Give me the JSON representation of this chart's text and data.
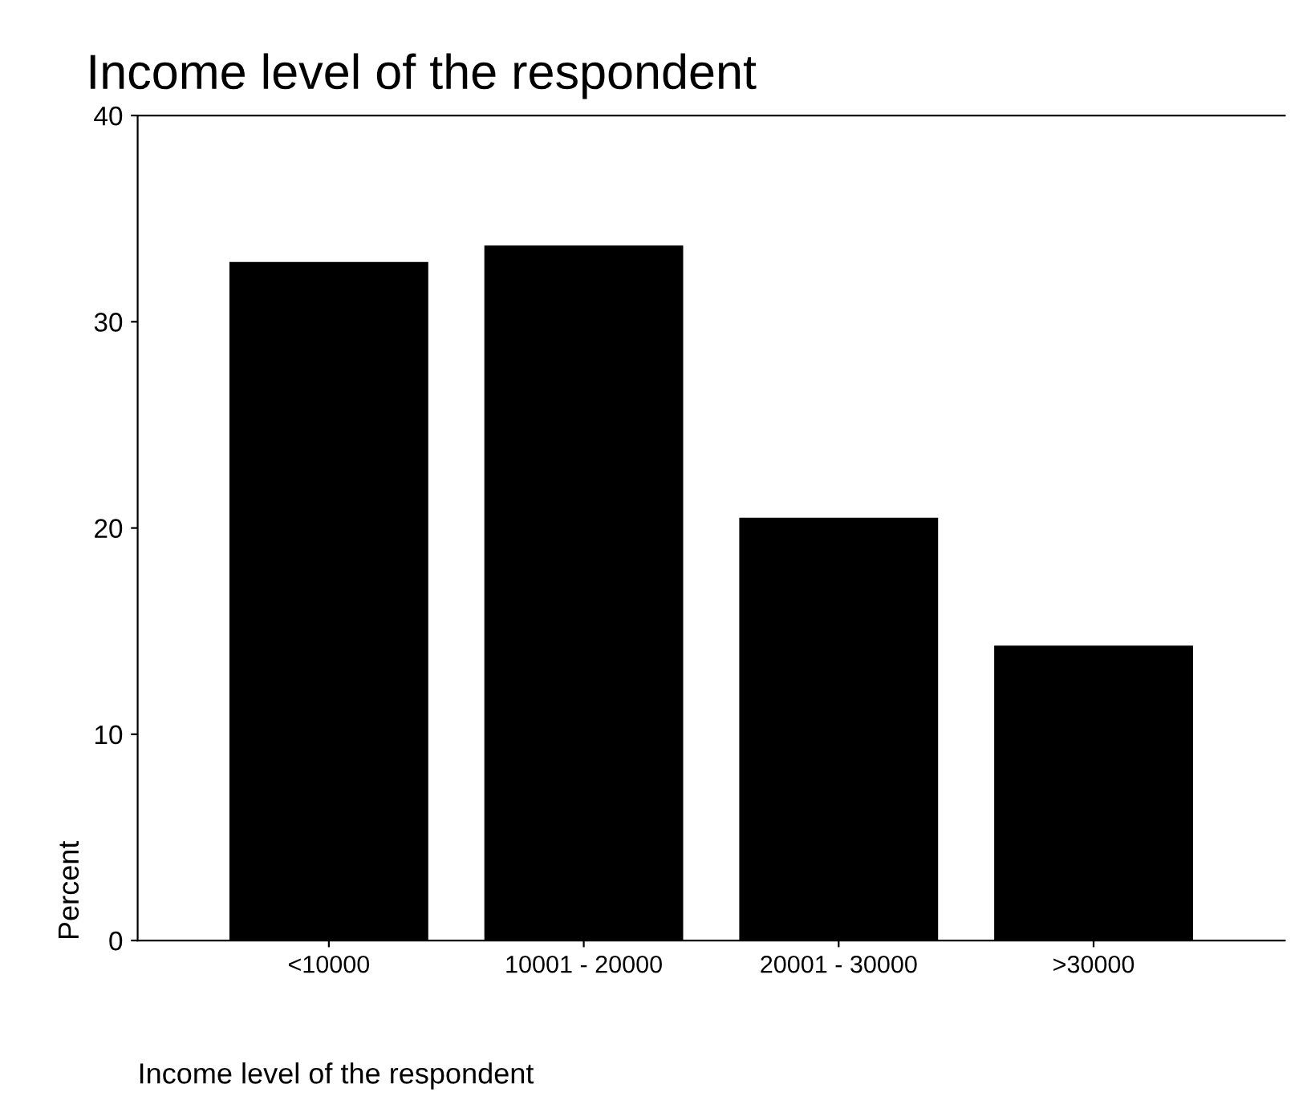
{
  "chart_data": {
    "type": "bar",
    "title": "Income level of the respondent",
    "xlabel": "Income level of the respondent",
    "ylabel": "Percent",
    "categories": [
      "<10000",
      "10001 - 20000",
      "20001 - 30000",
      ">30000"
    ],
    "values": [
      32.9,
      33.7,
      20.5,
      14.3
    ],
    "color": "#000000",
    "ylim": [
      0,
      40
    ],
    "yticks": [
      0,
      10,
      20,
      30,
      40
    ],
    "grid": false,
    "legend": false
  }
}
